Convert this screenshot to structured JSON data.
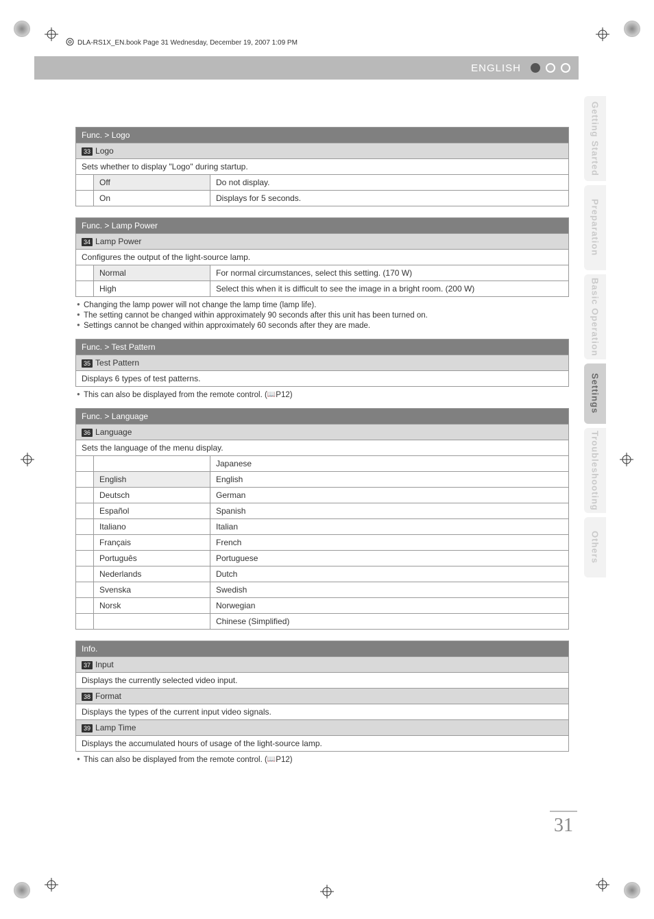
{
  "meta": {
    "book_header": "DLA-RS1X_EN.book  Page 31  Wednesday, December 19, 2007  1:09 PM"
  },
  "band": {
    "language_label": "ENGLISH"
  },
  "sections": {
    "logo": {
      "breadcrumb": "Func. > Logo",
      "ref": "33",
      "title": "Logo",
      "desc": "Sets whether to display \"Logo\" during startup.",
      "options": [
        {
          "name": "Off",
          "desc": "Do not display.",
          "shaded": true
        },
        {
          "name": "On",
          "desc": "Displays for 5 seconds.",
          "shaded": false
        }
      ]
    },
    "lamp_power": {
      "breadcrumb": "Func. > Lamp Power",
      "ref": "34",
      "title": "Lamp Power",
      "desc": "Configures the output of the light-source lamp.",
      "options": [
        {
          "name": "Normal",
          "desc": "For normal circumstances, select this setting. (170 W)",
          "shaded": true
        },
        {
          "name": "High",
          "desc": "Select this when it is difficult to see the image in a bright room. (200 W)",
          "shaded": false
        }
      ],
      "notes": [
        "Changing the lamp power will not change the lamp time (lamp life).",
        "The setting cannot be changed within approximately 90 seconds after this unit has been turned on.",
        "Settings cannot be changed within approximately 60 seconds after they are made."
      ]
    },
    "test_pattern": {
      "breadcrumb": "Func. > Test Pattern",
      "ref": "35",
      "title": "Test Pattern",
      "desc": "Displays 6 types of test patterns.",
      "note": "This can also be displayed from the remote control. (",
      "note_ref": "P12",
      "note_close": ")"
    },
    "language": {
      "breadcrumb": "Func. > Language",
      "ref": "36",
      "title": "Language",
      "desc": "Sets the language of the menu display.",
      "options": [
        {
          "name": "",
          "desc": "Japanese",
          "shaded": false
        },
        {
          "name": "English",
          "desc": "English",
          "shaded": true
        },
        {
          "name": "Deutsch",
          "desc": "German",
          "shaded": false
        },
        {
          "name": "Español",
          "desc": "Spanish",
          "shaded": false
        },
        {
          "name": "Italiano",
          "desc": "Italian",
          "shaded": false
        },
        {
          "name": "Français",
          "desc": "French",
          "shaded": false
        },
        {
          "name": "Português",
          "desc": "Portuguese",
          "shaded": false
        },
        {
          "name": "Nederlands",
          "desc": "Dutch",
          "shaded": false
        },
        {
          "name": "Svenska",
          "desc": "Swedish",
          "shaded": false
        },
        {
          "name": "Norsk",
          "desc": "Norwegian",
          "shaded": false
        },
        {
          "name": "",
          "desc": "Chinese (Simplified)",
          "shaded": false
        }
      ]
    },
    "info": {
      "breadcrumb": "Info.",
      "items": [
        {
          "ref": "37",
          "title": "Input",
          "desc": "Displays the currently selected video input."
        },
        {
          "ref": "38",
          "title": "Format",
          "desc": "Displays the types of the current input video signals."
        },
        {
          "ref": "39",
          "title": "Lamp Time",
          "desc": "Displays the accumulated hours of usage of the light-source lamp."
        }
      ],
      "note": "This can also be displayed from the remote control. (",
      "note_ref": "P12",
      "note_close": ")"
    }
  },
  "sidebar": {
    "tabs": [
      {
        "label": "Getting Started",
        "active": false
      },
      {
        "label": "Preparation",
        "active": false
      },
      {
        "label": "Basic Operation",
        "active": false
      },
      {
        "label": "Settings",
        "active": true
      },
      {
        "label": "Troubleshooting",
        "active": false
      },
      {
        "label": "Others",
        "active": false
      }
    ]
  },
  "page_number": "31",
  "colors": {
    "band_bg": "#b9b9b9",
    "breadcrumb_bg": "#808080",
    "item_bg": "#d9d9d9",
    "shaded_bg": "#ececec",
    "border": "#999999",
    "tab_inactive_bg": "#f2f2f2",
    "tab_active_bg": "#cfcfcf",
    "tab_inactive_text": "#cacaca",
    "tab_active_text": "#6a6a6a"
  }
}
